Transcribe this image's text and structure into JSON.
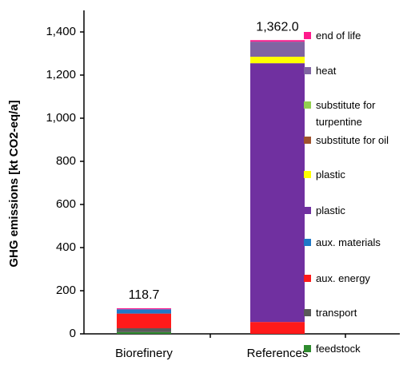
{
  "chart_data": {
    "type": "stacked-bar",
    "y_label": "GHG emissions [kt CO2-eq/a]",
    "categories": [
      "Biorefinery",
      "References"
    ],
    "series": [
      {
        "name": "feedstock",
        "color": "#2e8b2e",
        "values": [
          8,
          0
        ]
      },
      {
        "name": "transport",
        "color": "#595959",
        "values": [
          18,
          0
        ]
      },
      {
        "name": "aux. energy",
        "color": "#ff1a1a",
        "values": [
          68,
          55
        ]
      },
      {
        "name": "aux. materials",
        "color": "#1f78c8",
        "values": [
          20,
          0
        ]
      },
      {
        "name": "plastic",
        "color": "#7030a0",
        "values": [
          0,
          1200
        ]
      },
      {
        "name": "plastic",
        "color": "#ffff00",
        "values": [
          0,
          30
        ]
      },
      {
        "name": "substitute for oil",
        "color": "#a0522d",
        "values": [
          0,
          0
        ]
      },
      {
        "name": "substitute for turpentine",
        "color": "#92d050",
        "values": [
          0,
          0
        ]
      },
      {
        "name": "heat",
        "color": "#8064a2",
        "values": [
          0,
          70
        ]
      },
      {
        "name": "end of life",
        "color": "#ff1a8c",
        "values": [
          4.7,
          7
        ]
      }
    ],
    "totals": [
      118.7,
      1362.0
    ],
    "total_labels": [
      "118.7",
      "1,362.0"
    ],
    "ylim": [
      0,
      1500
    ],
    "yticks": [
      0,
      200,
      400,
      600,
      800,
      {
        "value": 1000,
        "label": "1,000"
      },
      {
        "value": 1200,
        "label": "1,200"
      },
      {
        "value": 1400,
        "label": "1,400"
      }
    ]
  }
}
